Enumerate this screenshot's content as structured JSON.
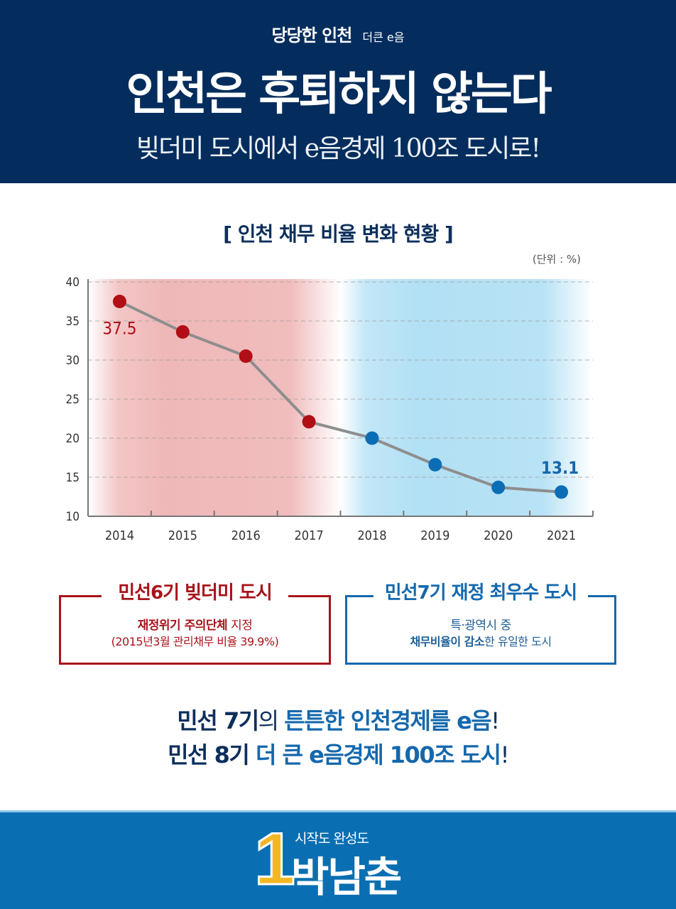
{
  "header": {
    "slogan": "당당한 인천",
    "brand_mark": "더큰 e음",
    "headline": "인천은 후퇴하지 않는다",
    "subhead": "빚더미 도시에서 e음경제 100조 도시로!"
  },
  "chart_data": {
    "type": "line",
    "title": "[ 인천 채무 비율 변화 현황 ]",
    "unit_label": "(단위 : %)",
    "xlabel": "",
    "ylabel": "",
    "categories": [
      "2014",
      "2015",
      "2016",
      "2017",
      "2018",
      "2019",
      "2020",
      "2021"
    ],
    "series": [
      {
        "name": "채무 비율",
        "values": [
          37.5,
          33.6,
          30.5,
          22.1,
          20.0,
          16.6,
          13.7,
          13.1
        ]
      }
    ],
    "point_colors": [
      "#b10e16",
      "#b10e16",
      "#b10e16",
      "#b10e16",
      "#0b6db6",
      "#0b6db6",
      "#0b6db6",
      "#0b6db6"
    ],
    "data_labels": [
      {
        "index": 0,
        "text": "37.5",
        "color": "#b10e16"
      },
      {
        "index": 7,
        "text": "13.1",
        "color": "#1468ad"
      }
    ],
    "ylim": [
      10,
      40
    ],
    "yticks": [
      "10",
      "15",
      "20",
      "25",
      "30",
      "35",
      "40"
    ],
    "grid": true,
    "bands": [
      {
        "from_index": 0,
        "to_index": 3,
        "color": "#efb9b9",
        "meaning": "민선6기"
      },
      {
        "from_index": 4,
        "to_index": 7,
        "color": "#b4e1f5",
        "meaning": "민선7기"
      }
    ]
  },
  "boxes": {
    "red": {
      "title": "민선6기 빚더미 도시",
      "line1_bold": "재정위기 주의단체",
      "line1_rest": " 지정",
      "line2": "(2015년3월 관리채무 비율 39.9%)"
    },
    "blue": {
      "title": "민선7기 재정 최우수 도시",
      "line1": "특·광역시 중",
      "line2_bold": "채무비율이 감소",
      "line2_rest": "한 유일한 도시"
    }
  },
  "closing": {
    "line1_a": "민선 7기",
    "line1_b": "의 ",
    "line1_c": "튼튼한 인천경제를 e음",
    "line1_d": "!",
    "line2_a": "민선 8기 ",
    "line2_b": "더 큰 e음경제 100조 도시",
    "line2_c": "!"
  },
  "footer": {
    "number": "1",
    "tagline": "시작도 완성도",
    "name": "박남춘"
  },
  "colors": {
    "navy": "#042d5d",
    "red": "#a8141c",
    "blue": "#1468ad",
    "footer_blue": "#0a6fb2",
    "gold": "#f3b724"
  }
}
